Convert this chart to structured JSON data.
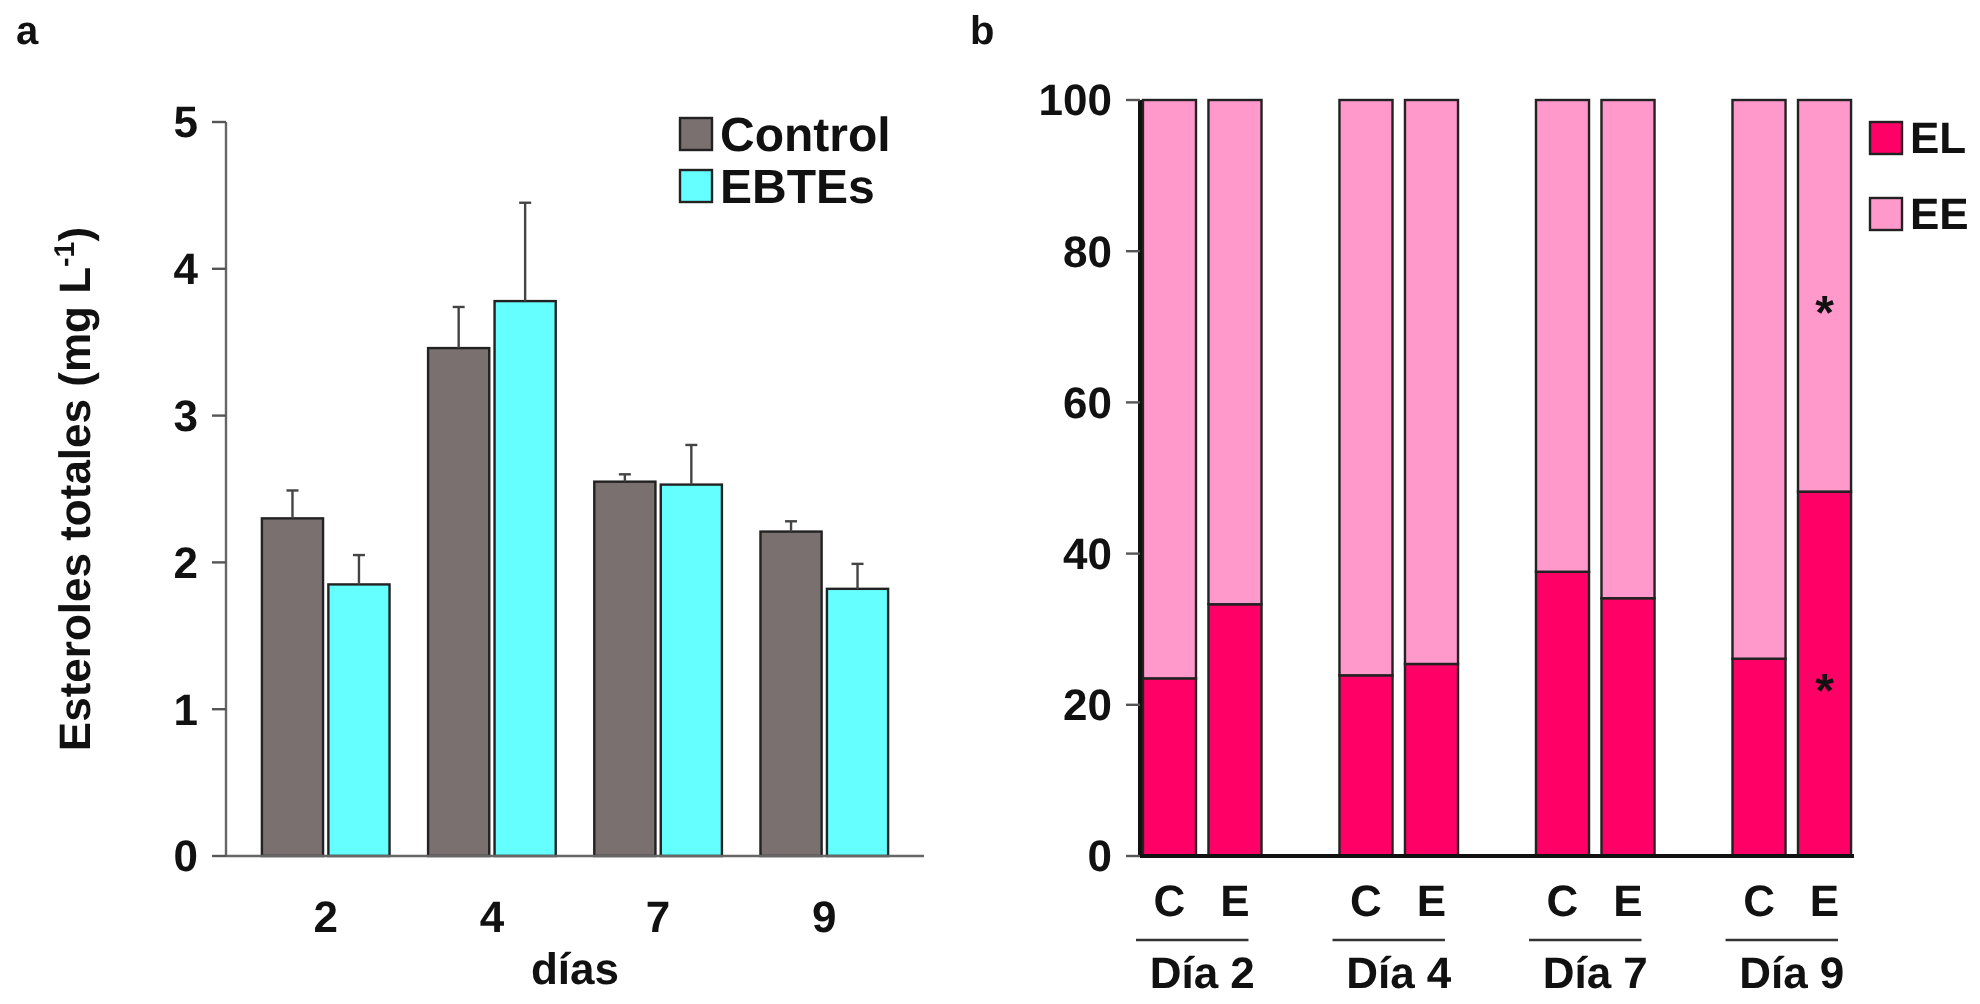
{
  "chart_data": [
    {
      "type": "bar",
      "title": "a",
      "xlabel": "días",
      "ylabel": "Esteroles totales (mg L$^{-1}$)",
      "categories": [
        "2",
        "4",
        "7",
        "9"
      ],
      "series": [
        {
          "name": "Control",
          "color": "#7a7070",
          "values": [
            2.3,
            3.46,
            2.55,
            2.21
          ],
          "errors": [
            [
              2.3,
              2.49
            ],
            [
              3.46,
              3.74
            ],
            [
              2.55,
              2.6
            ],
            [
              2.21,
              2.28
            ]
          ]
        },
        {
          "name": "EBTEs",
          "color": "#66ffff",
          "values": [
            1.85,
            3.78,
            2.53,
            1.82
          ],
          "errors": [
            [
              1.85,
              2.05
            ],
            [
              3.78,
              4.45
            ],
            [
              2.53,
              2.8
            ],
            [
              1.82,
              1.99
            ]
          ]
        }
      ],
      "ylim": [
        0,
        5
      ],
      "yticks": [
        0,
        1,
        2,
        3,
        4,
        5
      ],
      "grid": false,
      "legend": "top right"
    },
    {
      "type": "bar",
      "title": "b",
      "stacked": true,
      "categories": [
        "C",
        "E",
        null,
        "C",
        "E",
        null,
        "C",
        "E",
        null,
        "C",
        "E"
      ],
      "series": [
        {
          "name": "EL",
          "color": "#ff0066",
          "values": [
            23.5,
            33.3,
            null,
            23.9,
            25.4,
            null,
            37.6,
            34.1,
            null,
            26.1,
            48.2
          ]
        },
        {
          "name": "EE",
          "color": "#ff99cc",
          "values": [
            76.5,
            66.7,
            null,
            76.1,
            74.6,
            null,
            62.4,
            65.9,
            null,
            73.9,
            51.8
          ]
        }
      ],
      "ylim": [
        0,
        100
      ],
      "yticks": [
        0,
        20,
        40,
        60,
        80,
        100
      ],
      "grid": false,
      "legend": "right",
      "annotations": [
        "Día 2",
        "Día 4",
        "Día 7",
        "Día 9",
        "*",
        "*"
      ]
    }
  ]
}
